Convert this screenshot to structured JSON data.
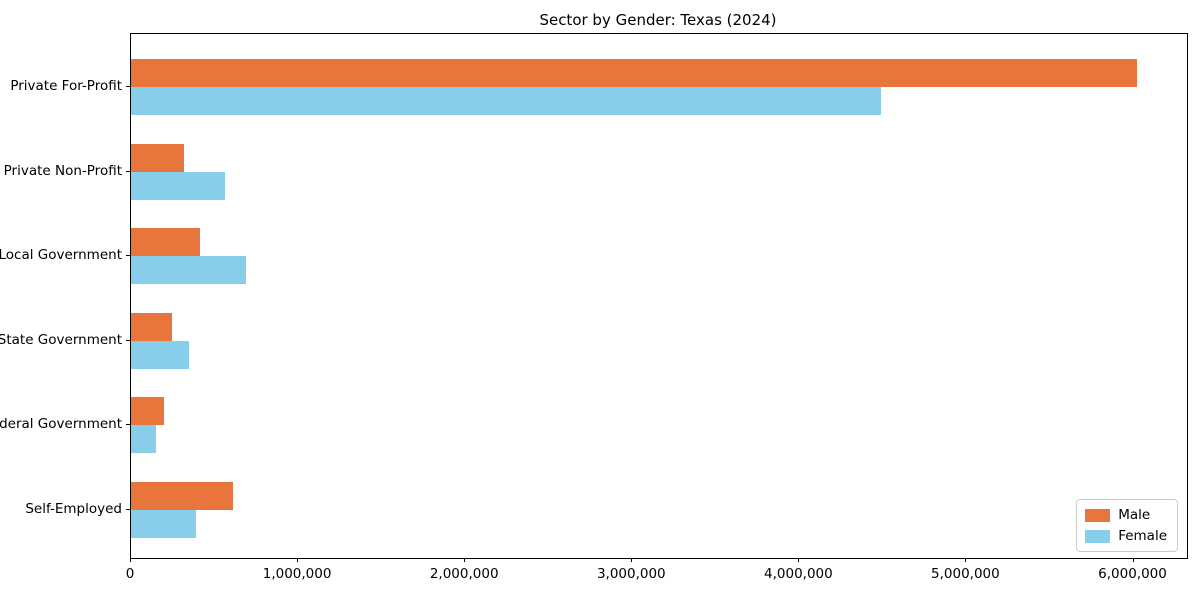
{
  "chart_data": {
    "type": "bar",
    "orientation": "horizontal",
    "title": "Sector by Gender: Texas (2024)",
    "categories": [
      "Private For-Profit",
      "Private Non-Profit",
      "Local Government",
      "State Government",
      "Federal Government",
      "Self-Employed"
    ],
    "series": [
      {
        "name": "Male",
        "color": "#e8763c",
        "values": [
          6020000,
          315000,
          410000,
          245000,
          200000,
          610000
        ]
      },
      {
        "name": "Female",
        "color": "#87ceeb",
        "values": [
          4490000,
          560000,
          690000,
          345000,
          150000,
          390000
        ]
      }
    ],
    "xlabel": "",
    "ylabel": "",
    "xlim": [
      0,
      6320000
    ],
    "x_ticks": [
      0,
      1000000,
      2000000,
      3000000,
      4000000,
      5000000,
      6000000
    ],
    "x_tick_labels": [
      "0",
      "1,000,000",
      "2,000,000",
      "3,000,000",
      "4,000,000",
      "5,000,000",
      "6,000,000"
    ],
    "legend": {
      "position": "lower right",
      "entries": [
        "Male",
        "Female"
      ]
    },
    "grid": false,
    "background_color": "#ffffff",
    "border_color": "#000000"
  }
}
